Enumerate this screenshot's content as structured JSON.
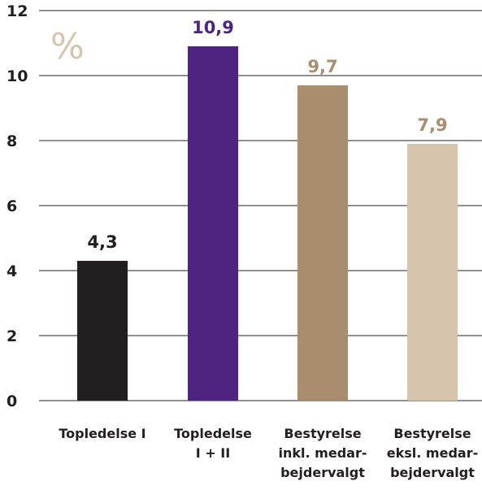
{
  "chart_data": {
    "type": "bar",
    "unit_label": "%",
    "categories": [
      [
        "Topledelse I"
      ],
      [
        "Topledelse",
        "I + II"
      ],
      [
        "Bestyrelse",
        "inkl. medar-",
        "bejdervalgt"
      ],
      [
        "Bestyrelse",
        "eksl. medar-",
        "bejdervalgt"
      ]
    ],
    "values": [
      4.3,
      10.9,
      9.7,
      7.9
    ],
    "value_labels": [
      "4,3",
      "10,9",
      "9,7",
      "7,9"
    ],
    "bar_colors": [
      "#231f20",
      "#4f2480",
      "#a88d6e",
      "#d6c4ad"
    ],
    "label_colors": [
      "#231f20",
      "#4f2480",
      "#a88d6e",
      "#a88d6e"
    ],
    "unit_color": "#d6c4ad",
    "ylim": [
      0,
      12
    ],
    "yticks": [
      0,
      2,
      4,
      6,
      8,
      10,
      12
    ],
    "grid": true,
    "legend": false
  }
}
